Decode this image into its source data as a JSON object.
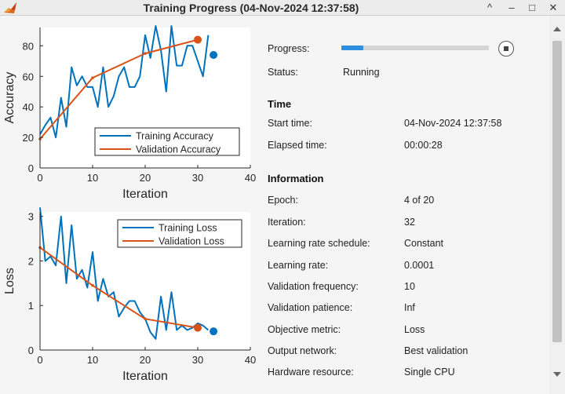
{
  "window": {
    "title": "Training Progress (04-Nov-2024 12:37:58)",
    "controls": {
      "collapse": "^",
      "minimize": "–",
      "maximize": "□",
      "close": "✕"
    }
  },
  "info": {
    "progress_label": "Progress:",
    "progress_fraction": 0.15,
    "status_label": "Status:",
    "status_value": "Running",
    "time_header": "Time",
    "start_time_label": "Start time:",
    "start_time_value": "04-Nov-2024 12:37:58",
    "elapsed_label": "Elapsed time:",
    "elapsed_value": "00:00:28",
    "information_header": "Information",
    "rows": [
      {
        "label": "Epoch:",
        "value": "4 of 20"
      },
      {
        "label": "Iteration:",
        "value": "32"
      },
      {
        "label": "Learning rate schedule:",
        "value": "Constant"
      },
      {
        "label": "Learning rate:",
        "value": "0.0001"
      },
      {
        "label": "Validation frequency:",
        "value": "10"
      },
      {
        "label": "Validation patience:",
        "value": "Inf"
      },
      {
        "label": "Objective metric:",
        "value": "Loss"
      },
      {
        "label": "Output network:",
        "value": "Best validation"
      },
      {
        "label": "Hardware resource:",
        "value": "Single CPU"
      }
    ]
  },
  "colors": {
    "training": "#0072BD",
    "validation": "#D95319",
    "progress": "#2e8fe0"
  },
  "chart_data": [
    {
      "type": "line",
      "xlabel": "Iteration",
      "ylabel": "Accuracy",
      "xlim": [
        0,
        40
      ],
      "ylim": [
        0,
        92
      ],
      "xticks": [
        0,
        10,
        20,
        30,
        40
      ],
      "yticks": [
        0,
        20,
        40,
        60,
        80
      ],
      "legend_position": "bottom-right",
      "series": [
        {
          "name": "Training Accuracy",
          "x": [
            0,
            1,
            2,
            3,
            4,
            5,
            6,
            7,
            8,
            9,
            10,
            11,
            12,
            13,
            14,
            15,
            16,
            17,
            18,
            19,
            20,
            21,
            22,
            23,
            24,
            25,
            26,
            27,
            28,
            29,
            30,
            31,
            32
          ],
          "y": [
            22,
            28,
            33,
            20,
            46,
            27,
            66,
            54,
            60,
            53,
            53,
            40,
            66,
            40,
            47,
            60,
            66,
            53,
            53,
            60,
            87,
            72,
            93,
            77,
            50,
            93,
            67,
            67,
            80,
            80,
            70,
            60,
            87
          ]
        },
        {
          "name": "Validation Accuracy",
          "x": [
            0,
            10,
            20,
            30
          ],
          "y": [
            19,
            59,
            75,
            84
          ]
        }
      ],
      "final_markers": [
        {
          "series": "Validation Accuracy",
          "x": 30,
          "y": 84
        },
        {
          "series": "Training Accuracy",
          "x": 33,
          "y": 74
        }
      ]
    },
    {
      "type": "line",
      "xlabel": "Iteration",
      "ylabel": "Loss",
      "xlim": [
        0,
        40
      ],
      "ylim": [
        0,
        3.1
      ],
      "xticks": [
        0,
        10,
        20,
        30,
        40
      ],
      "yticks": [
        0,
        1,
        2,
        3
      ],
      "legend_position": "top-right",
      "series": [
        {
          "name": "Training Loss",
          "x": [
            0,
            1,
            2,
            3,
            4,
            5,
            6,
            7,
            8,
            9,
            10,
            11,
            12,
            13,
            14,
            15,
            16,
            17,
            18,
            19,
            20,
            21,
            22,
            23,
            24,
            25,
            26,
            27,
            28,
            29,
            30,
            31,
            32
          ],
          "y": [
            3.2,
            2.0,
            2.1,
            1.9,
            3.0,
            1.5,
            2.8,
            1.6,
            1.8,
            1.4,
            2.2,
            1.1,
            1.6,
            1.2,
            1.3,
            0.75,
            0.95,
            1.1,
            1.1,
            0.85,
            0.7,
            0.4,
            0.25,
            1.2,
            0.45,
            1.3,
            0.45,
            0.55,
            0.45,
            0.5,
            0.6,
            0.55,
            0.45
          ]
        },
        {
          "name": "Validation Loss",
          "x": [
            0,
            10,
            20,
            30
          ],
          "y": [
            2.3,
            1.45,
            0.7,
            0.5
          ]
        }
      ],
      "final_markers": [
        {
          "series": "Validation Loss",
          "x": 30,
          "y": 0.5
        },
        {
          "series": "Training Loss",
          "x": 33,
          "y": 0.42
        }
      ]
    }
  ]
}
